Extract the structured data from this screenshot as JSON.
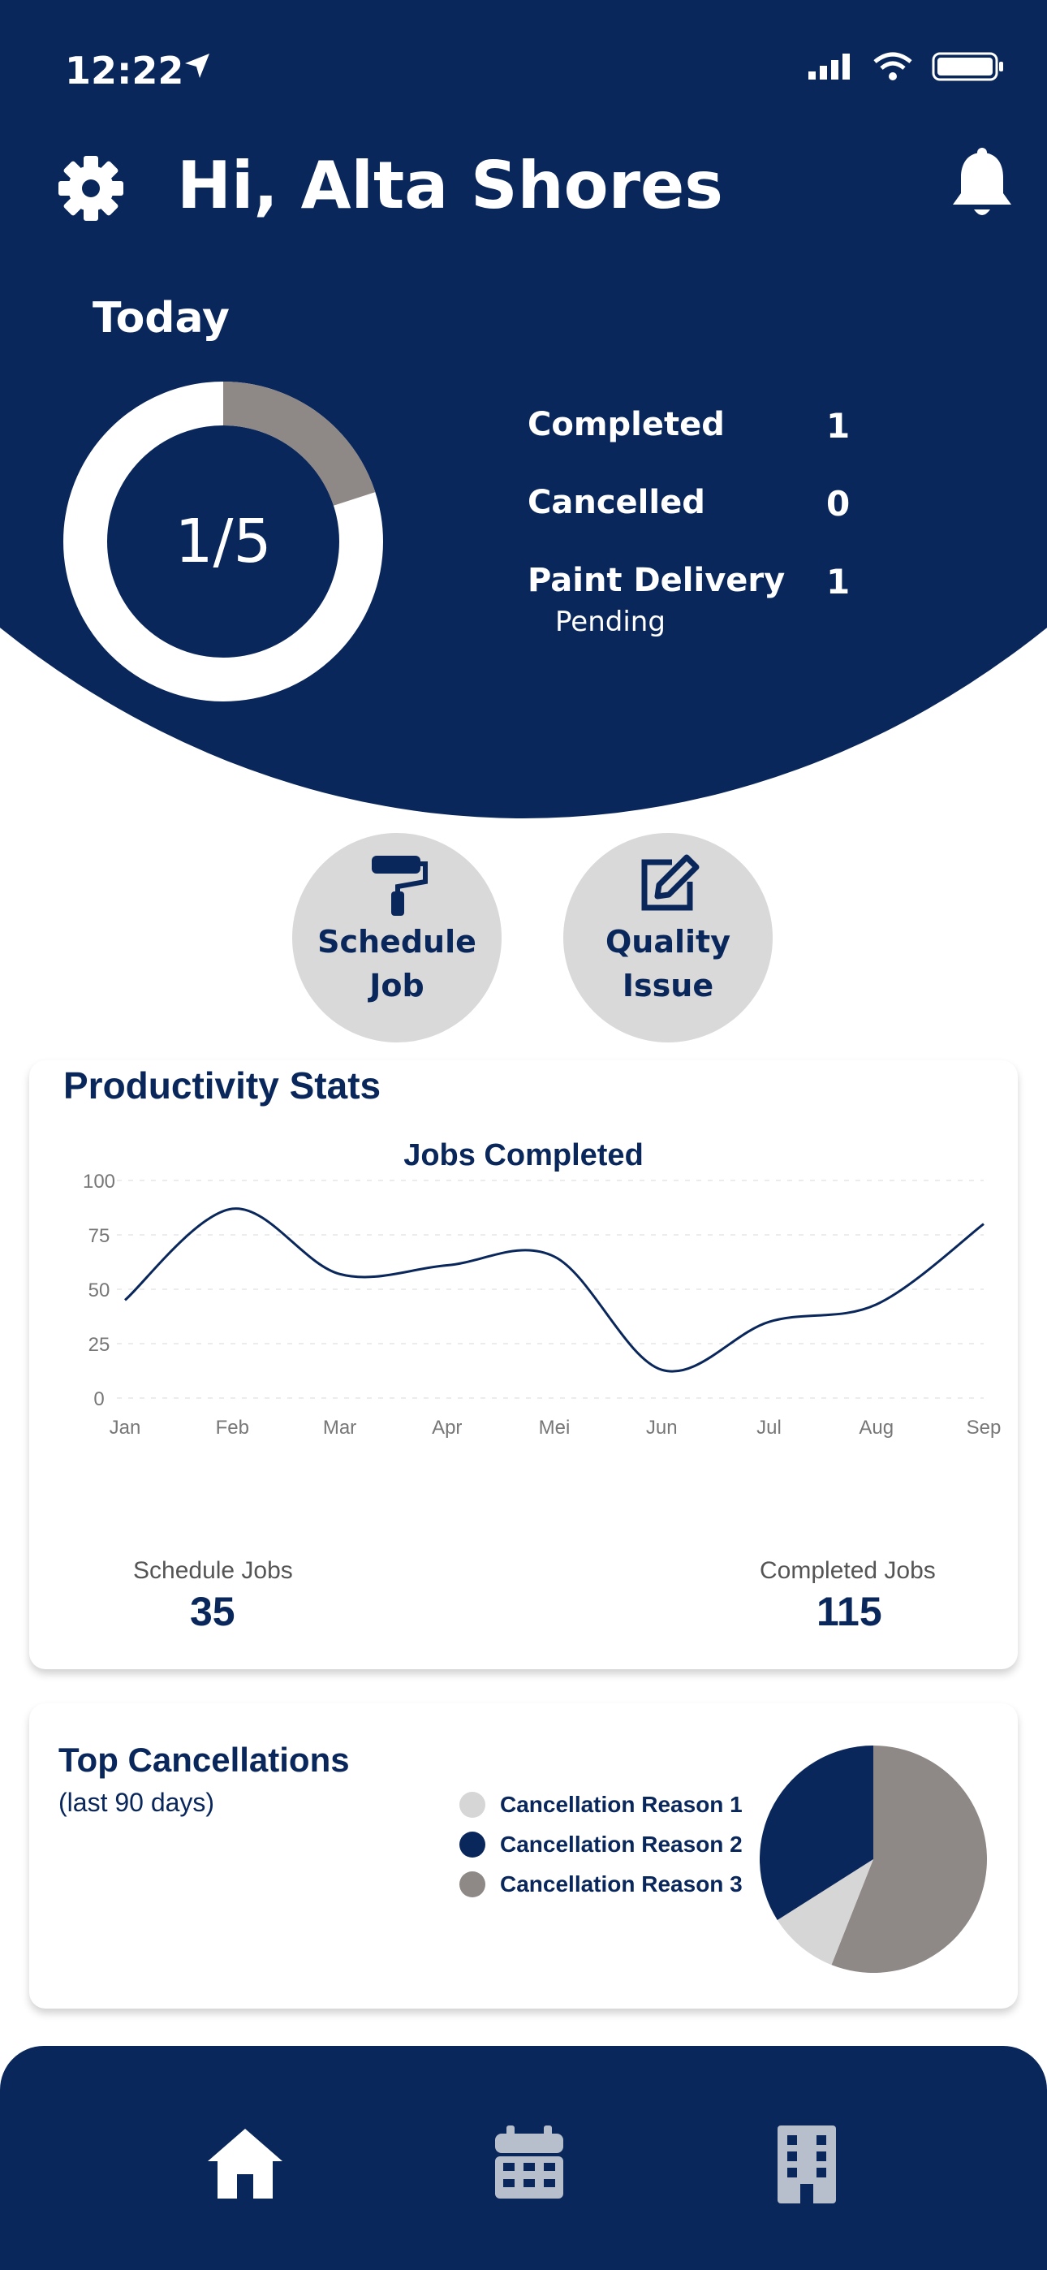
{
  "status_bar": {
    "time": "12:22"
  },
  "header": {
    "greeting": "Hi, Alta Shores",
    "today_label": "Today",
    "progress_text": "1/5",
    "progress_fraction": 0.2
  },
  "today_stats": [
    {
      "label": "Completed",
      "value": "1"
    },
    {
      "label": "Cancelled",
      "value": "0"
    },
    {
      "label": "Paint Delivery",
      "value": "1",
      "sublabel": "Pending"
    }
  ],
  "actions": [
    {
      "line1": "Schedule",
      "line2": "Job",
      "icon": "paint-roller-icon"
    },
    {
      "line1": "Quality",
      "line2": "Issue",
      "icon": "edit-icon"
    }
  ],
  "productivity": {
    "title": "Productivity Stats",
    "kpis": [
      {
        "label": "Schedule Jobs",
        "value": "35"
      },
      {
        "label": "Completed Jobs",
        "value": "115"
      }
    ]
  },
  "chart_data": [
    {
      "type": "line",
      "title": "Jobs Completed",
      "x": [
        "Jan",
        "Feb",
        "Mar",
        "Apr",
        "Mei",
        "Jun",
        "Jul",
        "Aug",
        "Sep"
      ],
      "series": [
        {
          "values": [
            45,
            87,
            57,
            61,
            65,
            13,
            35,
            43,
            80
          ]
        }
      ],
      "ylim": [
        0,
        100
      ],
      "yticks": [
        0,
        25,
        50,
        75,
        100
      ],
      "grid": true
    },
    {
      "type": "pie",
      "labels": [
        "Cancellation Reason 1",
        "Cancellation Reason 2",
        "Cancellation Reason 3"
      ],
      "values": [
        10,
        34,
        56
      ],
      "colors": [
        "#d6d6d6",
        "#0a275c",
        "#8e8886"
      ]
    }
  ],
  "cancellations": {
    "title": "Top Cancellations",
    "subtitle": "(last 90 days)"
  },
  "nav": {
    "items": [
      "home-icon",
      "calendar-icon",
      "building-icon"
    ]
  },
  "colors": {
    "primary": "#0a275c",
    "button_bg": "#d9d9d9",
    "accent_gray": "#8e8886"
  }
}
